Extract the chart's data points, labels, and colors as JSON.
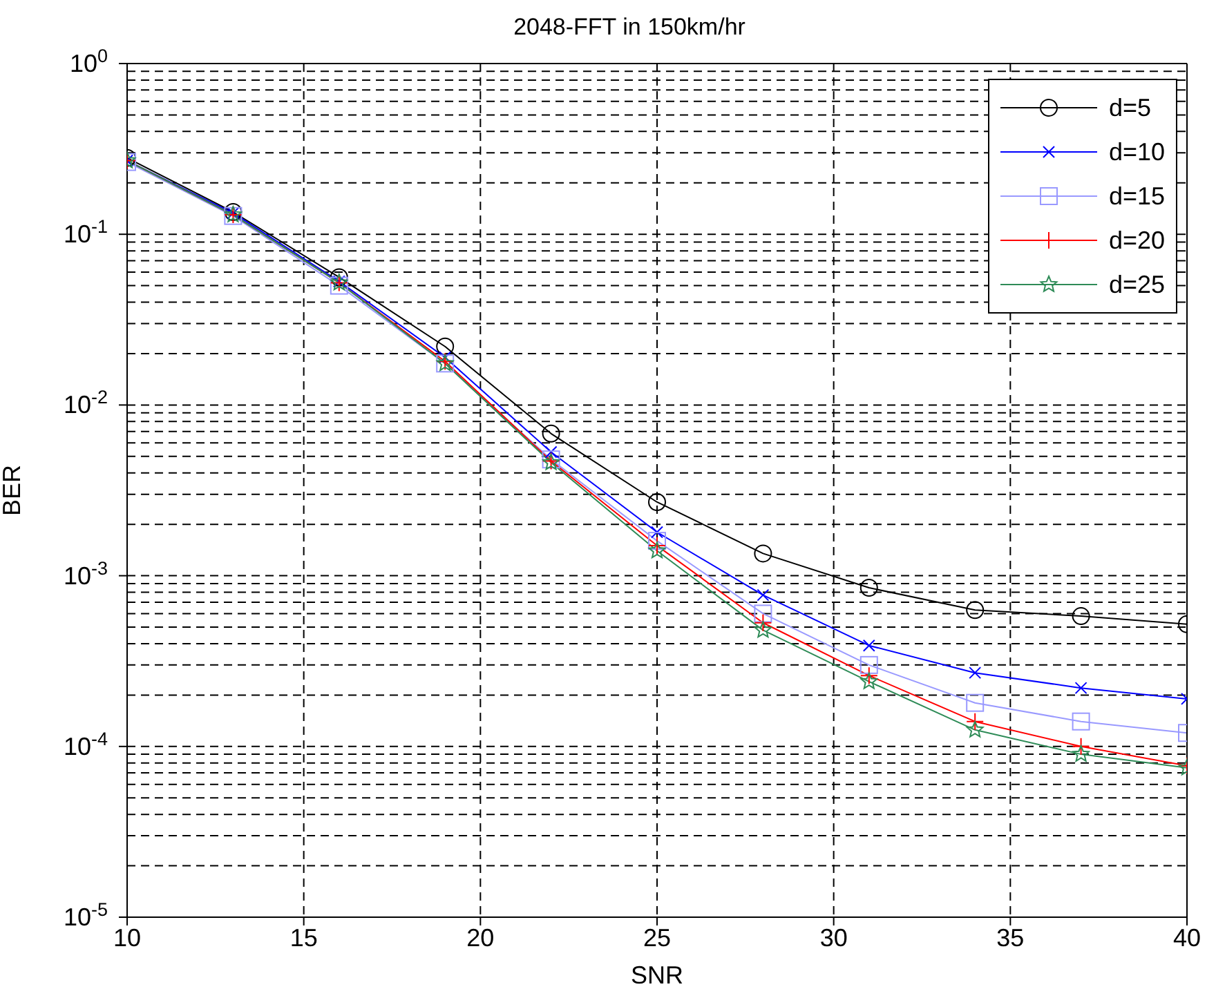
{
  "chart_data": {
    "type": "line",
    "title": "2048-FFT in 150km/hr",
    "xlabel": "SNR",
    "ylabel": "BER",
    "x": [
      10,
      13,
      16,
      19,
      22,
      25,
      28,
      31,
      34,
      37,
      40
    ],
    "series": [
      {
        "name": "d=5",
        "color": "#000000",
        "marker": "circle",
        "values": [
          0.28,
          0.135,
          0.056,
          0.022,
          0.0068,
          0.0027,
          0.00135,
          0.00085,
          0.00063,
          0.00058,
          0.00052
        ]
      },
      {
        "name": "d=10",
        "color": "#0000ff",
        "marker": "cross",
        "values": [
          0.27,
          0.133,
          0.053,
          0.019,
          0.0053,
          0.0018,
          0.00077,
          0.00039,
          0.00027,
          0.00022,
          0.00019
        ]
      },
      {
        "name": "d=15",
        "color": "#9999ff",
        "marker": "square",
        "values": [
          0.265,
          0.128,
          0.05,
          0.0175,
          0.0048,
          0.0016,
          0.0006,
          0.0003,
          0.00018,
          0.00014,
          0.00012
        ]
      },
      {
        "name": "d=20",
        "color": "#ff0000",
        "marker": "plus",
        "values": [
          0.27,
          0.13,
          0.052,
          0.018,
          0.0047,
          0.0015,
          0.00053,
          0.00026,
          0.00014,
          0.0001,
          7.7e-05
        ]
      },
      {
        "name": "d=25",
        "color": "#2e8b57",
        "marker": "star",
        "values": [
          0.27,
          0.13,
          0.052,
          0.0175,
          0.0046,
          0.0014,
          0.00048,
          0.00024,
          0.000125,
          9e-05,
          7.5e-05
        ]
      }
    ],
    "xlim": [
      10,
      40
    ],
    "xticks": [
      10,
      15,
      20,
      25,
      30,
      35,
      40
    ],
    "ylim": [
      1e-05,
      1
    ],
    "yticks": [
      {
        "value": 1e-05,
        "label": "10$^{-5}$"
      },
      {
        "value": 0.0001,
        "label": "10$^{-4}$"
      },
      {
        "value": 0.001,
        "label": "10$^{-3}$"
      },
      {
        "value": 0.01,
        "label": "10$^{-2}$"
      },
      {
        "value": 0.1,
        "label": "10$^{-1}$"
      },
      {
        "value": 1,
        "label": "10$^{0}$"
      }
    ],
    "log": true,
    "grid": true,
    "legend": "top right",
    "line_style": "solid"
  }
}
